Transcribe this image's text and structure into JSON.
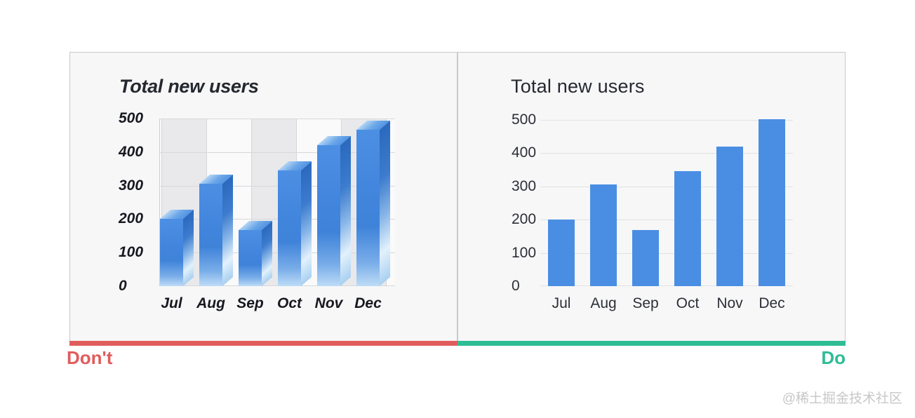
{
  "page": {
    "background": "#ffffff",
    "watermark": "@稀土掘金技术社区"
  },
  "labels": {
    "dont": "Don't",
    "do": "Do"
  },
  "colors": {
    "dont_accent": "#e05c5c",
    "do_accent": "#2fbd96",
    "bar_blue": "#4a8ee3",
    "panel_bg": "#f7f7f8",
    "panel_border": "#c9c9c9",
    "title_text": "#25282f",
    "axis_text": "#2c2f36",
    "gridline_left_chart": "#d8d8da",
    "gridline_right_chart": "#e2e2e4",
    "background_band_gray": "#e9e9eb",
    "watermark_text": "#c7c7c9"
  },
  "chart_data": [
    {
      "type": "bar",
      "variant": "3d",
      "panel": "dont",
      "title": "Total new users",
      "categories": [
        "Jul",
        "Aug",
        "Sep",
        "Oct",
        "Nov",
        "Dec"
      ],
      "values": [
        200,
        305,
        168,
        345,
        420,
        467
      ],
      "y_ticks": [
        0,
        100,
        200,
        300,
        400,
        500
      ],
      "ylim": [
        0,
        500
      ],
      "xlabel": "",
      "ylabel": "",
      "grid": "horizontal-lines, vertical-lines and alternating gray column bands",
      "legend": "none",
      "note": "3D perspective bars; front faces read lower than true values (Dec true value ~500 reads ~467)"
    },
    {
      "type": "bar",
      "variant": "flat",
      "panel": "do",
      "title": "Total new users",
      "categories": [
        "Jul",
        "Aug",
        "Sep",
        "Oct",
        "Nov",
        "Dec"
      ],
      "values": [
        200,
        305,
        168,
        345,
        420,
        503
      ],
      "y_ticks": [
        0,
        100,
        200,
        300,
        400,
        500
      ],
      "ylim": [
        0,
        500
      ],
      "xlabel": "",
      "ylabel": "",
      "grid": "horizontal-lines",
      "legend": "none"
    }
  ]
}
